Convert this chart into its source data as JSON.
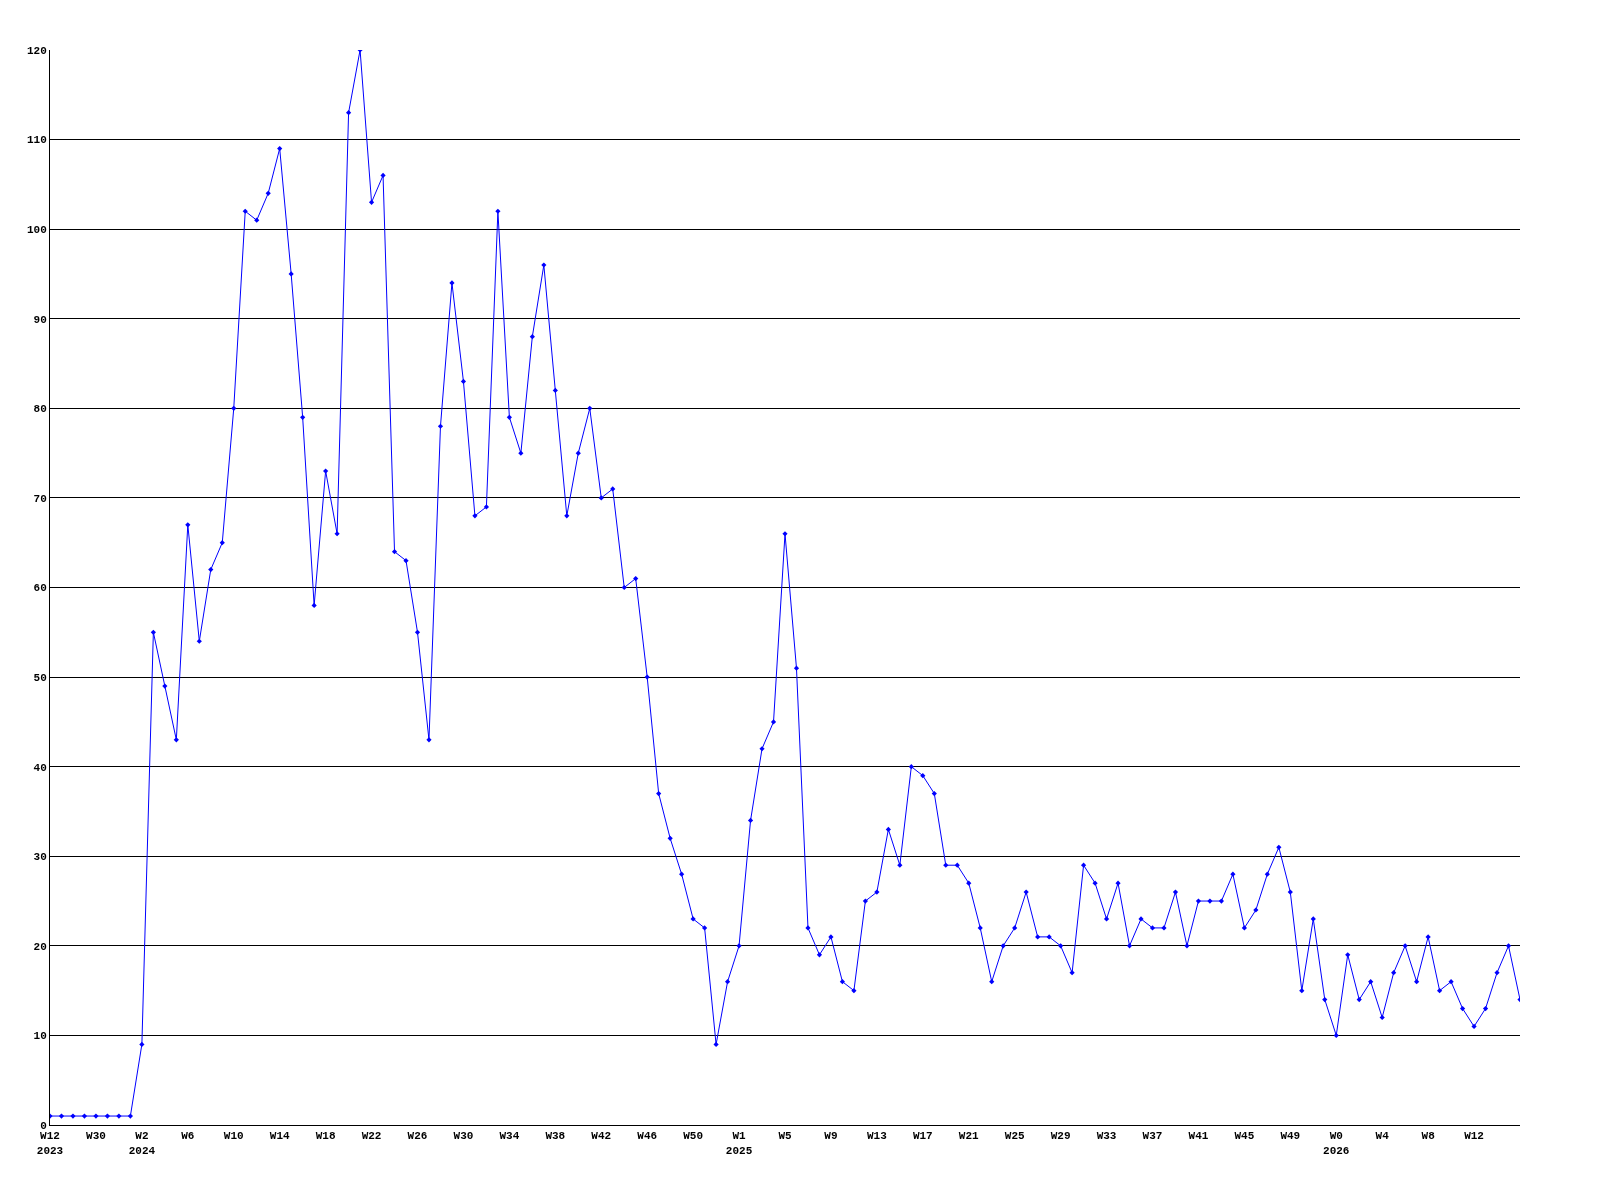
{
  "chart_data": {
    "type": "line",
    "categories": [
      "W12\n2023",
      null,
      null,
      null,
      "W30",
      null,
      null,
      null,
      "W2\n2024",
      null,
      null,
      null,
      "W6",
      null,
      null,
      null,
      "W10",
      null,
      null,
      null,
      "W14",
      null,
      null,
      null,
      "W18",
      null,
      null,
      null,
      "W22",
      null,
      null,
      null,
      "W26",
      null,
      null,
      null,
      "W30",
      null,
      null,
      null,
      "W34",
      null,
      null,
      null,
      "W38",
      null,
      null,
      null,
      "W42",
      null,
      null,
      null,
      "W46",
      null,
      null,
      null,
      "W50",
      null,
      null,
      null,
      "W1\n2025",
      null,
      null,
      null,
      "W5",
      null,
      null,
      null,
      "W9",
      null,
      null,
      null,
      "W13",
      null,
      null,
      null,
      "W17",
      null,
      null,
      null,
      "W21",
      null,
      null,
      null,
      "W25",
      null,
      null,
      null,
      "W29",
      null,
      null,
      null,
      "W33",
      null,
      null,
      null,
      "W37",
      null,
      null,
      null,
      "W41",
      null,
      null,
      null,
      "W45",
      null,
      null,
      null,
      "W49",
      null,
      null,
      null,
      "W0\n2026",
      null,
      null,
      null,
      "W4",
      null,
      null,
      null,
      "W8",
      null,
      null,
      null,
      "W12",
      null,
      null,
      null,
      null
    ],
    "series": [
      {
        "color": "#0000ff",
        "values": [
          1,
          1,
          1,
          1,
          1,
          1,
          1,
          1,
          9,
          55,
          49,
          43,
          67,
          54,
          62,
          65,
          80,
          102,
          101,
          104,
          109,
          95,
          79,
          58,
          73,
          66,
          113,
          120,
          103,
          106,
          64,
          63,
          55,
          43,
          78,
          94,
          83,
          68,
          69,
          102,
          79,
          75,
          88,
          96,
          82,
          68,
          75,
          80,
          70,
          71,
          60,
          61,
          50,
          37,
          32,
          28,
          23,
          22,
          9,
          16,
          20,
          34,
          42,
          45,
          66,
          51,
          22,
          19,
          21,
          16,
          15,
          25,
          26,
          33,
          29,
          40,
          39,
          37,
          29,
          29,
          27,
          22,
          16,
          20,
          22,
          26,
          21,
          21,
          20,
          17,
          29,
          27,
          23,
          27,
          20,
          23,
          22,
          22,
          26,
          20,
          25,
          25,
          25,
          28,
          22,
          24,
          28,
          31,
          26,
          15,
          23,
          14,
          10,
          19,
          14,
          16,
          12,
          17,
          20,
          16,
          21,
          15,
          16,
          13,
          11,
          13,
          17,
          20,
          14
        ]
      }
    ],
    "ylim": [
      0,
      120
    ],
    "yticks": [
      0,
      10,
      20,
      30,
      40,
      50,
      60,
      70,
      80,
      90,
      100,
      110,
      120
    ],
    "grid": "y",
    "legend": false,
    "marker": "diamond",
    "line_style": "solid"
  }
}
